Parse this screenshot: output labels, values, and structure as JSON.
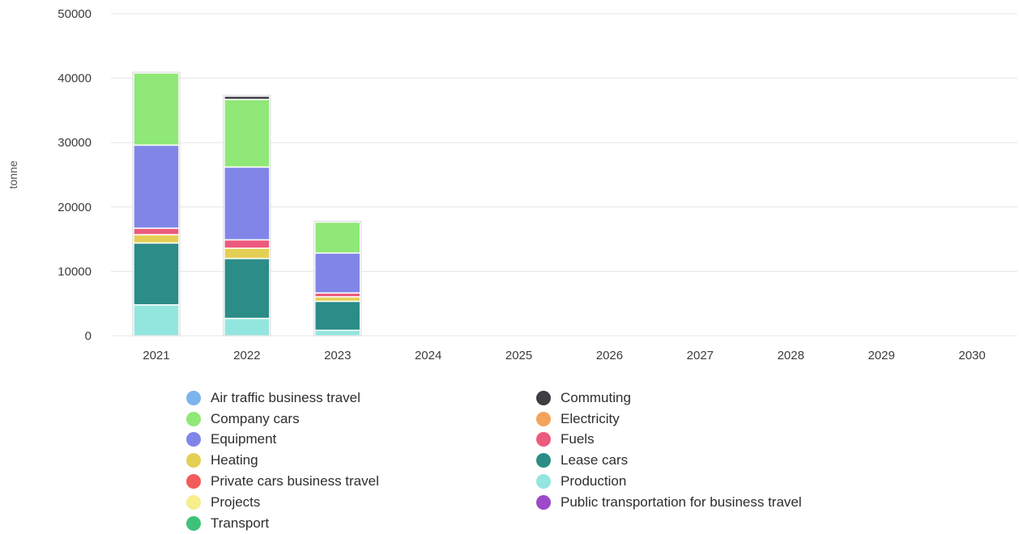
{
  "chart_data": {
    "type": "bar",
    "stacked": true,
    "ylabel": "tonne",
    "xlabel": "",
    "ylim": [
      0,
      50000
    ],
    "yticks": [
      0,
      10000,
      20000,
      30000,
      40000,
      50000
    ],
    "grid": true,
    "legend_position": "bottom",
    "categories": [
      "2021",
      "2022",
      "2023",
      "2024",
      "2025",
      "2026",
      "2027",
      "2028",
      "2029",
      "2030"
    ],
    "series": [
      {
        "name": "Production",
        "color": "#93e6de",
        "values": [
          4800,
          2700,
          850,
          0,
          0,
          0,
          0,
          0,
          0,
          0
        ]
      },
      {
        "name": "Lease cars",
        "color": "#2b8c88",
        "values": [
          9600,
          9300,
          4500,
          0,
          0,
          0,
          0,
          0,
          0,
          0
        ]
      },
      {
        "name": "Heating",
        "color": "#e4cf55",
        "values": [
          1300,
          1600,
          700,
          0,
          0,
          0,
          0,
          0,
          0,
          0
        ]
      },
      {
        "name": "Fuels",
        "color": "#ec5b7e",
        "values": [
          1000,
          1300,
          600,
          0,
          0,
          0,
          0,
          0,
          0,
          0
        ]
      },
      {
        "name": "Equipment",
        "color": "#8185e8",
        "values": [
          12900,
          11300,
          6200,
          0,
          0,
          0,
          0,
          0,
          0,
          0
        ]
      },
      {
        "name": "Company cars",
        "color": "#90e878",
        "values": [
          11200,
          10500,
          4800,
          0,
          0,
          0,
          0,
          0,
          0,
          0
        ]
      },
      {
        "name": "Commuting",
        "color": "#3e3e44",
        "values": [
          0,
          500,
          0,
          0,
          0,
          0,
          0,
          0,
          0,
          0
        ]
      },
      {
        "name": "Electricity",
        "color": "#f4a35b",
        "values": [
          0,
          0,
          0,
          0,
          0,
          0,
          0,
          0,
          0,
          0
        ]
      },
      {
        "name": "Air traffic business travel",
        "color": "#7cb5ec",
        "values": [
          0,
          0,
          0,
          0,
          0,
          0,
          0,
          0,
          0,
          0
        ]
      },
      {
        "name": "Private cars business travel",
        "color": "#f45b5b",
        "values": [
          0,
          0,
          0,
          0,
          0,
          0,
          0,
          0,
          0,
          0
        ]
      },
      {
        "name": "Projects",
        "color": "#f7ee8c",
        "values": [
          0,
          0,
          0,
          0,
          0,
          0,
          0,
          0,
          0,
          0
        ]
      },
      {
        "name": "Public transportation for business travel",
        "color": "#9c4ac7",
        "values": [
          0,
          0,
          0,
          0,
          0,
          0,
          0,
          0,
          0,
          0
        ]
      },
      {
        "name": "Transport",
        "color": "#3ec27a",
        "values": [
          0,
          0,
          0,
          0,
          0,
          0,
          0,
          0,
          0,
          0
        ]
      }
    ]
  },
  "legend": {
    "items": [
      {
        "label": "Air traffic business travel",
        "color": "#7cb5ec"
      },
      {
        "label": "Commuting",
        "color": "#3e3e44"
      },
      {
        "label": "Company cars",
        "color": "#90e878"
      },
      {
        "label": "Electricity",
        "color": "#f4a35b"
      },
      {
        "label": "Equipment",
        "color": "#8185e8"
      },
      {
        "label": "Fuels",
        "color": "#ec5b7e"
      },
      {
        "label": "Heating",
        "color": "#e4cf55"
      },
      {
        "label": "Lease cars",
        "color": "#2b8c88"
      },
      {
        "label": "Private cars business travel",
        "color": "#f45b5b"
      },
      {
        "label": "Production",
        "color": "#93e6de"
      },
      {
        "label": "Projects",
        "color": "#f7ee8c"
      },
      {
        "label": "Public transportation for business travel",
        "color": "#9c4ac7"
      },
      {
        "label": "Transport",
        "color": "#3ec27a"
      }
    ]
  }
}
